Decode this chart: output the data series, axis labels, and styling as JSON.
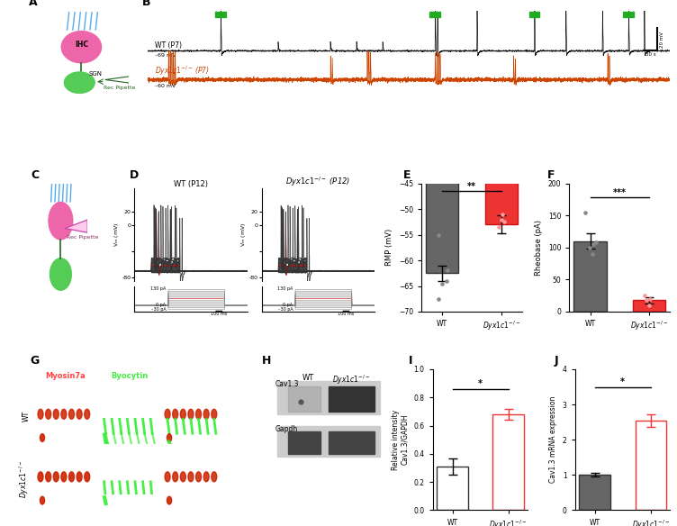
{
  "panel_E": {
    "bar_values": [
      -62.5,
      -53.0
    ],
    "bar_errors": [
      1.5,
      1.8
    ],
    "dot_wt": [
      -67.5,
      -64.0,
      -55.0,
      -62.0,
      -64.5
    ],
    "dot_ko": [
      -51.0,
      -52.5,
      -52.0,
      -53.5
    ],
    "ylabel": "RMP (mV)",
    "ylim": [
      -70,
      -45
    ],
    "yticks": [
      -70,
      -65,
      -60,
      -55,
      -50,
      -45
    ],
    "sig_label": "**"
  },
  "panel_F": {
    "bar_values": [
      110,
      18
    ],
    "bar_errors": [
      12,
      5
    ],
    "dot_wt": [
      155,
      105,
      100,
      90,
      108
    ],
    "dot_ko": [
      20,
      10,
      25,
      18
    ],
    "ylabel": "Rheobase (pA)",
    "ylim": [
      0,
      200
    ],
    "yticks": [
      0,
      50,
      100,
      150,
      200
    ],
    "sig_label": "***"
  },
  "panel_I": {
    "bar_values": [
      0.31,
      0.68
    ],
    "bar_errors": [
      0.06,
      0.04
    ],
    "ylabel": "Relative intensity\nCav1.3/GAPDH",
    "ylim": [
      0,
      1.0
    ],
    "yticks": [
      0.0,
      0.2,
      0.4,
      0.6,
      0.8,
      1.0
    ],
    "sig_label": "*"
  },
  "panel_J": {
    "bar_values": [
      1.0,
      2.55
    ],
    "bar_errors": [
      0.05,
      0.18
    ],
    "ylabel": "Cav1.3 mRNA expression",
    "ylim": [
      0,
      4
    ],
    "yticks": [
      0,
      1,
      2,
      3,
      4
    ],
    "sig_label": "*"
  },
  "bg_color": "#ffffff",
  "green_color": "#22aa22",
  "wt_trace_color": "#111111",
  "ko_trace_color": "#cc4400",
  "gray_bar": "#666666",
  "red_bar": "#ee3333",
  "dot_gray": "#888888",
  "dot_red": "#ff9999"
}
